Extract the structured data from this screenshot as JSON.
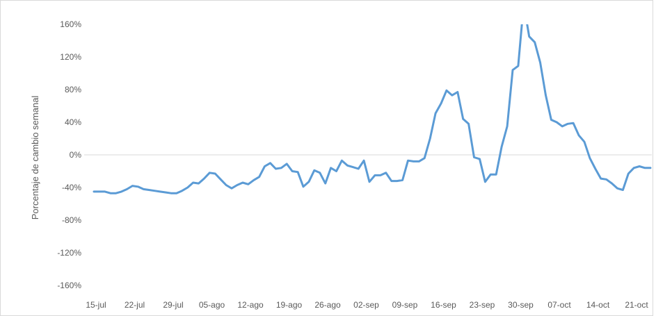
{
  "chart_data": {
    "type": "line",
    "title": "",
    "xlabel": "",
    "ylabel": "Porcentaje de cambio semanal",
    "ylim": [
      -160,
      160
    ],
    "y_unit": "%",
    "yticks": [
      160,
      120,
      80,
      40,
      0,
      -40,
      -80,
      -120,
      -160
    ],
    "yticks_labels": [
      "160%",
      "120%",
      "80%",
      "40%",
      "0%",
      "-40%",
      "-80%",
      "-120%",
      "-160%"
    ],
    "xticks_labels": [
      "15-jul",
      "22-jul",
      "29-jul",
      "05-ago",
      "12-ago",
      "19-ago",
      "26-ago",
      "02-sep",
      "09-sep",
      "16-sep",
      "23-sep",
      "30-sep",
      "07-oct",
      "14-oct",
      "21-oct"
    ],
    "zero_line": true,
    "grid": false,
    "line_color": "#5b9bd5",
    "zero_line_color": "#d9d9d9",
    "series": [
      {
        "values": [
          -45,
          -45,
          -45,
          -47,
          -47,
          -45,
          -42,
          -38,
          -39,
          -42,
          -43,
          -44,
          -45,
          -46,
          -47,
          -47,
          -44,
          -40,
          -34,
          -35,
          -29,
          -22,
          -23,
          -30,
          -37,
          -41,
          -37,
          -34,
          -36,
          -31,
          -27,
          -14,
          -10,
          -17,
          -16,
          -11,
          -20,
          -21,
          -39,
          -33,
          -19,
          -22,
          -35,
          -16,
          -20,
          -7,
          -13,
          -15,
          -17,
          -7,
          -33,
          -25,
          -25,
          -22,
          -32,
          -32,
          -31,
          -7,
          -8,
          -8,
          -4,
          20,
          51,
          63,
          79,
          73,
          77,
          44,
          38,
          -3,
          -5,
          -33,
          -24,
          -24,
          10,
          35,
          104,
          109,
          185,
          145,
          138,
          113,
          73,
          43,
          40,
          35,
          38,
          39,
          24,
          16,
          -4,
          -17,
          -29,
          -30,
          -35,
          -41,
          -43,
          -23,
          -16,
          -14,
          -16,
          -16
        ]
      }
    ]
  }
}
